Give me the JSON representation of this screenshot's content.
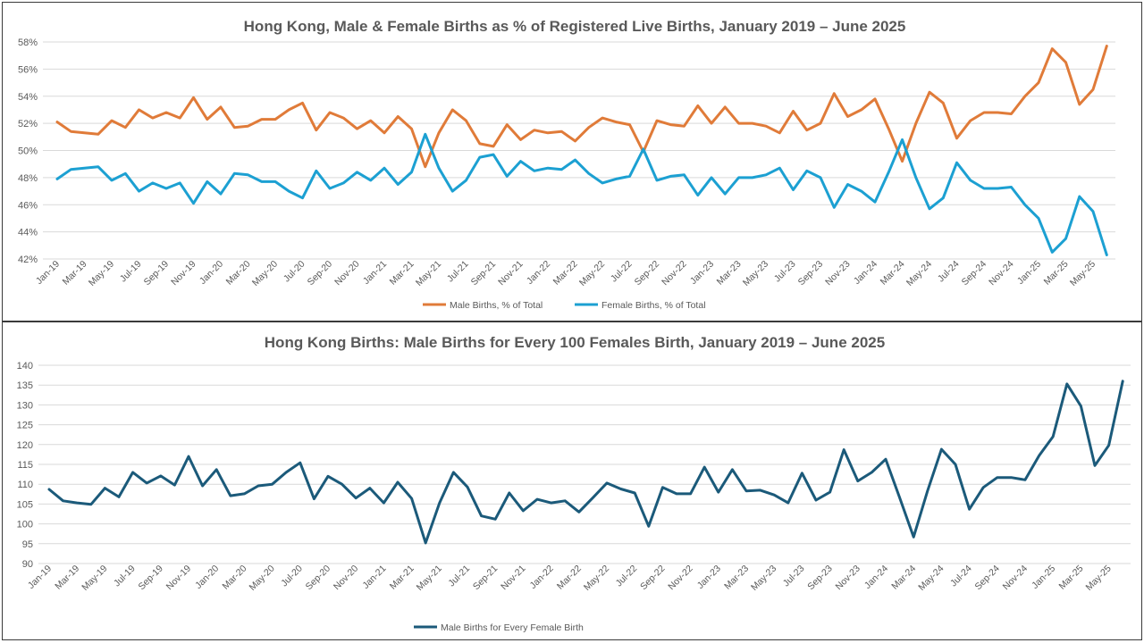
{
  "chart_data": [
    {
      "type": "line",
      "title": "Hong Kong, Male & Female Births as % of Registered Live Births, January 2019 – June 2025",
      "ylim": [
        42,
        58
      ],
      "yticks": [
        "42%",
        "44%",
        "46%",
        "48%",
        "50%",
        "52%",
        "54%",
        "56%",
        "58%"
      ],
      "x_tick_labels": [
        "Jan-19",
        "Mar-19",
        "May-19",
        "Jul-19",
        "Sep-19",
        "Nov-19",
        "Jan-20",
        "Mar-20",
        "May-20",
        "Jul-20",
        "Sep-20",
        "Nov-20",
        "Jan-21",
        "Mar-21",
        "May-21",
        "Jul-21",
        "Sep-21",
        "Nov-21",
        "Jan-22",
        "Mar-22",
        "May-22",
        "Jul-22",
        "Sep-22",
        "Nov-22",
        "Jan-23",
        "Mar-23",
        "May-23",
        "Jul-23",
        "Sep-23",
        "Nov-23",
        "Jan-24",
        "Mar-24",
        "May-24",
        "Jul-24",
        "Sep-24",
        "Nov-24",
        "Jan-25",
        "Mar-25",
        "May-25"
      ],
      "legend_position": "bottom",
      "series": [
        {
          "name": "Male Births, % of Total",
          "color": "#e07b39",
          "values": [
            52.1,
            51.4,
            51.3,
            51.2,
            52.2,
            51.7,
            53.0,
            52.4,
            52.8,
            52.4,
            53.9,
            52.3,
            53.2,
            51.7,
            51.8,
            52.3,
            52.3,
            53.0,
            53.5,
            51.5,
            52.8,
            52.4,
            51.6,
            52.2,
            51.3,
            52.5,
            51.6,
            48.8,
            51.3,
            53.0,
            52.2,
            50.5,
            50.3,
            51.9,
            50.8,
            51.5,
            51.3,
            51.4,
            50.7,
            51.7,
            52.4,
            52.1,
            51.9,
            49.9,
            52.2,
            51.9,
            51.8,
            53.3,
            52.0,
            53.2,
            52.0,
            52.0,
            51.8,
            51.3,
            52.9,
            51.5,
            52.0,
            54.2,
            52.5,
            53.0,
            53.8,
            51.6,
            49.2,
            52.0,
            54.3,
            53.5,
            50.9,
            52.2,
            52.8,
            52.8,
            52.7,
            54.0,
            55.0,
            57.5,
            56.5,
            53.4,
            54.5,
            57.7
          ]
        },
        {
          "name": "Female Births, % of Total",
          "color": "#1ca0d2",
          "values": [
            47.9,
            48.6,
            48.7,
            48.8,
            47.8,
            48.3,
            47.0,
            47.6,
            47.2,
            47.6,
            46.1,
            47.7,
            46.8,
            48.3,
            48.2,
            47.7,
            47.7,
            47.0,
            46.5,
            48.5,
            47.2,
            47.6,
            48.4,
            47.8,
            48.7,
            47.5,
            48.4,
            51.2,
            48.7,
            47.0,
            47.8,
            49.5,
            49.7,
            48.1,
            49.2,
            48.5,
            48.7,
            48.6,
            49.3,
            48.3,
            47.6,
            47.9,
            48.1,
            50.1,
            47.8,
            48.1,
            48.2,
            46.7,
            48.0,
            46.8,
            48.0,
            48.0,
            48.2,
            48.7,
            47.1,
            48.5,
            48.0,
            45.8,
            47.5,
            47.0,
            46.2,
            48.4,
            50.8,
            48.0,
            45.7,
            46.5,
            49.1,
            47.8,
            47.2,
            47.2,
            47.3,
            46.0,
            45.0,
            42.5,
            43.5,
            46.6,
            45.5,
            42.3
          ]
        }
      ]
    },
    {
      "type": "line",
      "title": "Hong Kong Births: Male Births for Every 100 Females Birth, January 2019 – June 2025",
      "ylim": [
        90,
        140
      ],
      "yticks": [
        "90",
        "95",
        "100",
        "105",
        "110",
        "115",
        "120",
        "125",
        "130",
        "135",
        "140"
      ],
      "x_tick_labels": [
        "Jan-19",
        "Mar-19",
        "May-19",
        "Jul-19",
        "Sep-19",
        "Nov-19",
        "Jan-20",
        "Mar-20",
        "May-20",
        "Jul-20",
        "Sep-20",
        "Nov-20",
        "Jan-21",
        "Mar-21",
        "May-21",
        "Jul-21",
        "Sep-21",
        "Nov-21",
        "Jan-22",
        "Mar-22",
        "May-22",
        "Jul-22",
        "Sep-22",
        "Nov-22",
        "Jan-23",
        "Mar-23",
        "May-23",
        "Jul-23",
        "Sep-23",
        "Nov-23",
        "Jan-24",
        "Mar-24",
        "May-24",
        "Jul-24",
        "Sep-24",
        "Nov-24",
        "Jan-25",
        "Mar-25",
        "May-25"
      ],
      "legend_position": "bottom",
      "series": [
        {
          "name": "Male Births for Every Female Birth",
          "color": "#1b5a7a",
          "values": [
            108.7,
            105.8,
            105.3,
            104.9,
            109.0,
            106.8,
            113.0,
            110.3,
            112.1,
            109.8,
            117.0,
            109.6,
            113.7,
            107.1,
            107.6,
            109.6,
            110.0,
            113.0,
            115.4,
            106.3,
            112.0,
            110.0,
            106.5,
            109.0,
            105.3,
            110.5,
            106.4,
            95.2,
            105.3,
            113.0,
            109.3,
            102.0,
            101.2,
            107.8,
            103.3,
            106.2,
            105.3,
            105.8,
            103.0,
            106.6,
            110.3,
            108.8,
            107.8,
            99.4,
            109.2,
            107.6,
            107.6,
            114.3,
            108.0,
            113.7,
            108.3,
            108.5,
            107.3,
            105.3,
            112.8,
            106.0,
            108.0,
            118.7,
            110.8,
            113.0,
            116.3,
            106.6,
            96.7,
            108.3,
            118.8,
            115.0,
            103.7,
            109.2,
            111.7,
            111.7,
            111.1,
            117.2,
            122.0,
            135.3,
            129.7,
            114.7,
            119.8,
            136.0
          ]
        }
      ]
    }
  ]
}
